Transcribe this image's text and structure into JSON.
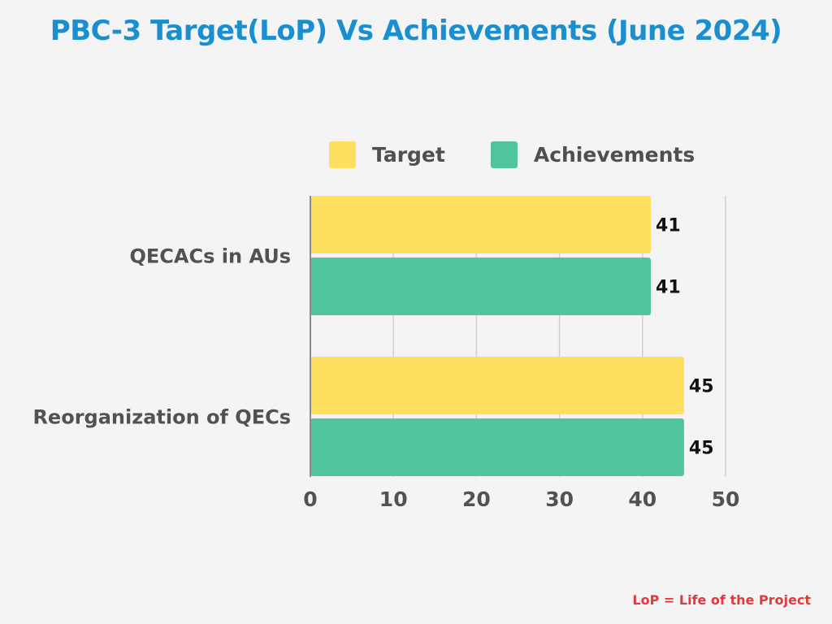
{
  "chart_data": {
    "type": "bar",
    "orientation": "horizontal",
    "title": "PBC-3 Target(LoP) Vs Achievements (June 2024)",
    "categories": [
      "QECACs in AUs",
      "Reorganization of QECs"
    ],
    "series": [
      {
        "name": "Target",
        "values": [
          41,
          45
        ],
        "color": "#ffdf5e"
      },
      {
        "name": "Achievements",
        "values": [
          41,
          45
        ],
        "color": "#50c49f"
      }
    ],
    "xlim": [
      0,
      50
    ],
    "xticks": [
      "0",
      "10",
      "20",
      "30",
      "40",
      "50"
    ],
    "grid": true,
    "legend_position": "top"
  },
  "footnote": "LoP = Life of the Project",
  "colors": {
    "title": "#1a8fcf",
    "footnote": "#e0393e",
    "background": "#f3f4f3",
    "axis_text": "#525252",
    "grid": "#cfcfcf"
  }
}
